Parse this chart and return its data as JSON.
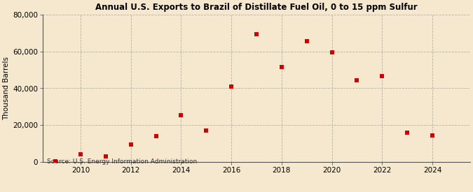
{
  "title": "Annual U.S. Exports to Brazil of Distillate Fuel Oil, 0 to 15 ppm Sulfur",
  "ylabel": "Thousand Barrels",
  "source": "Source: U.S. Energy Information Administration",
  "background_color": "#f5e8ce",
  "marker_color": "#cc0000",
  "years": [
    2009,
    2010,
    2011,
    2012,
    2013,
    2014,
    2015,
    2016,
    2017,
    2018,
    2019,
    2020,
    2021,
    2022,
    2023,
    2024
  ],
  "values": [
    500,
    4000,
    3000,
    9500,
    14000,
    25500,
    17000,
    41000,
    69500,
    51500,
    65500,
    59500,
    44500,
    46500,
    16000,
    14500
  ],
  "ylim": [
    0,
    80000
  ],
  "yticks": [
    0,
    20000,
    40000,
    60000,
    80000
  ],
  "xlim": [
    2008.5,
    2025.5
  ],
  "xticks": [
    2010,
    2012,
    2014,
    2016,
    2018,
    2020,
    2022,
    2024
  ]
}
